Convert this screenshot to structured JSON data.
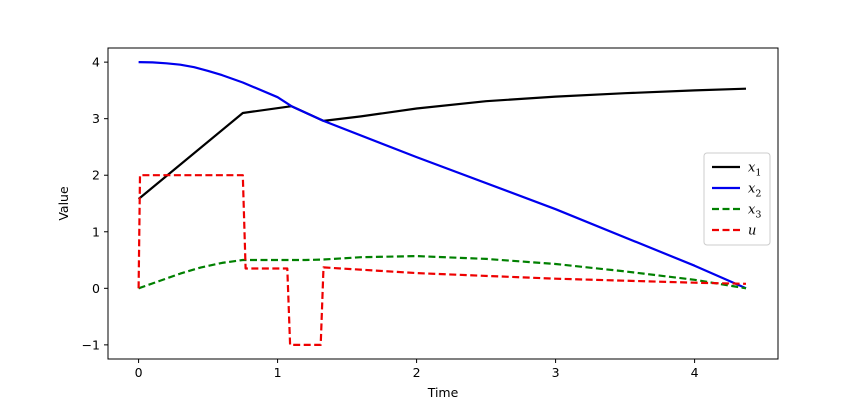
{
  "chart_data": {
    "type": "line",
    "title": "",
    "xlabel": "Time",
    "ylabel": "Value",
    "xlim": [
      -0.22,
      4.6
    ],
    "ylim": [
      -1.25,
      4.25
    ],
    "xticks": [
      0,
      1,
      2,
      3,
      4
    ],
    "yticks": [
      -1,
      0,
      1,
      2,
      3,
      4
    ],
    "xtick_labels": [
      "0",
      "1",
      "2",
      "3",
      "4"
    ],
    "ytick_labels": [
      "−1",
      "0",
      "1",
      "2",
      "3",
      "4"
    ],
    "grid": false,
    "legend_position": "center-right",
    "series": [
      {
        "name": "x",
        "name_sub": "1",
        "color": "#000000",
        "dash": "solid",
        "points": [
          [
            0,
            1.58
          ],
          [
            0.75,
            3.1
          ],
          [
            1.1,
            3.22
          ],
          [
            1.33,
            2.96
          ],
          [
            1.6,
            3.04
          ],
          [
            2.0,
            3.18
          ],
          [
            2.5,
            3.31
          ],
          [
            3.0,
            3.39
          ],
          [
            3.5,
            3.45
          ],
          [
            4.0,
            3.5
          ],
          [
            4.37,
            3.53
          ]
        ]
      },
      {
        "name": "x",
        "name_sub": "2",
        "color": "#0000ee",
        "dash": "solid",
        "points": [
          [
            0,
            4.0
          ],
          [
            0.1,
            3.995
          ],
          [
            0.2,
            3.98
          ],
          [
            0.3,
            3.955
          ],
          [
            0.4,
            3.91
          ],
          [
            0.5,
            3.845
          ],
          [
            0.6,
            3.77
          ],
          [
            0.75,
            3.64
          ],
          [
            1.0,
            3.38
          ],
          [
            1.1,
            3.22
          ],
          [
            1.33,
            2.96
          ],
          [
            2.0,
            2.32
          ],
          [
            3.0,
            1.4
          ],
          [
            4.0,
            0.4
          ],
          [
            4.37,
            0.0
          ]
        ]
      },
      {
        "name": "x",
        "name_sub": "3",
        "color": "#008000",
        "dash": "dashed",
        "points": [
          [
            0,
            0.0
          ],
          [
            0.15,
            0.13
          ],
          [
            0.3,
            0.26
          ],
          [
            0.45,
            0.37
          ],
          [
            0.6,
            0.45
          ],
          [
            0.75,
            0.5
          ],
          [
            1.0,
            0.5
          ],
          [
            1.2,
            0.5
          ],
          [
            1.33,
            0.51
          ],
          [
            1.6,
            0.55
          ],
          [
            2.0,
            0.57
          ],
          [
            2.5,
            0.52
          ],
          [
            3.0,
            0.43
          ],
          [
            3.5,
            0.3
          ],
          [
            4.0,
            0.15
          ],
          [
            4.37,
            0.0
          ]
        ]
      },
      {
        "name": "u",
        "name_sub": "",
        "color": "#ee0000",
        "dash": "dashed",
        "points": [
          [
            0,
            0.0
          ],
          [
            0.01,
            2.0
          ],
          [
            0.75,
            2.0
          ],
          [
            0.77,
            0.35
          ],
          [
            1.07,
            0.35
          ],
          [
            1.09,
            -1.0
          ],
          [
            1.31,
            -1.0
          ],
          [
            1.33,
            0.37
          ],
          [
            2.0,
            0.27
          ],
          [
            3.0,
            0.17
          ],
          [
            4.0,
            0.1
          ],
          [
            4.37,
            0.08
          ]
        ]
      }
    ]
  }
}
